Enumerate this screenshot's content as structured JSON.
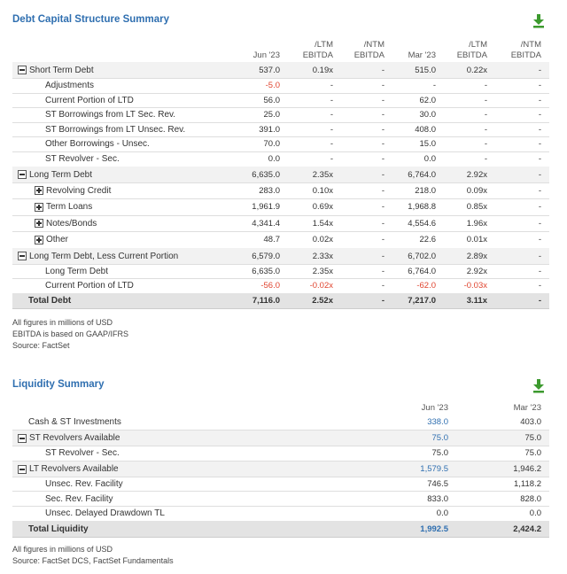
{
  "debt": {
    "title": "Debt Capital Structure Summary",
    "download_icon": "download-icon",
    "columns": [
      "Jun '23",
      "/LTM EBITDA",
      "/NTM EBITDA",
      "Mar '23",
      "/LTM EBITDA",
      "/NTM EBITDA"
    ],
    "col_hdr": {
      "c1": "Jun '23",
      "c2a": "/LTM",
      "c2b": "EBITDA",
      "c3a": "/NTM",
      "c3b": "EBITDA",
      "c4": "Mar '23",
      "c5a": "/LTM",
      "c5b": "EBITDA",
      "c6a": "/NTM",
      "c6b": "EBITDA"
    },
    "rows": [
      {
        "label": "Short Term Debt",
        "type": "minus",
        "values": [
          "537.0",
          "0.19x",
          "-",
          "515.0",
          "0.22x",
          "-"
        ]
      },
      {
        "label": "Adjustments",
        "type": "child",
        "values": [
          "-5.0",
          "-",
          "-",
          "-",
          "-",
          "-"
        ]
      },
      {
        "label": "Current Portion of LTD",
        "type": "child",
        "values": [
          "56.0",
          "-",
          "-",
          "62.0",
          "-",
          "-"
        ]
      },
      {
        "label": "ST Borrowings from LT Sec. Rev.",
        "type": "child",
        "values": [
          "25.0",
          "-",
          "-",
          "30.0",
          "-",
          "-"
        ]
      },
      {
        "label": "ST Borrowings from LT Unsec. Rev.",
        "type": "child",
        "values": [
          "391.0",
          "-",
          "-",
          "408.0",
          "-",
          "-"
        ]
      },
      {
        "label": "Other Borrowings - Unsec.",
        "type": "child",
        "values": [
          "70.0",
          "-",
          "-",
          "15.0",
          "-",
          "-"
        ]
      },
      {
        "label": "ST Revolver - Sec.",
        "type": "child",
        "values": [
          "0.0",
          "-",
          "-",
          "0.0",
          "-",
          "-"
        ]
      },
      {
        "label": "Long Term Debt",
        "type": "minus",
        "values": [
          "6,635.0",
          "2.35x",
          "-",
          "6,764.0",
          "2.92x",
          "-"
        ]
      },
      {
        "label": "Revolving Credit",
        "type": "plus",
        "values": [
          "283.0",
          "0.10x",
          "-",
          "218.0",
          "0.09x",
          "-"
        ]
      },
      {
        "label": "Term Loans",
        "type": "plus",
        "values": [
          "1,961.9",
          "0.69x",
          "-",
          "1,968.8",
          "0.85x",
          "-"
        ]
      },
      {
        "label": "Notes/Bonds",
        "type": "plus",
        "values": [
          "4,341.4",
          "1.54x",
          "-",
          "4,554.6",
          "1.96x",
          "-"
        ]
      },
      {
        "label": "Other",
        "type": "plus",
        "values": [
          "48.7",
          "0.02x",
          "-",
          "22.6",
          "0.01x",
          "-"
        ]
      },
      {
        "label": "Long Term Debt, Less Current Portion",
        "type": "minus",
        "values": [
          "6,579.0",
          "2.33x",
          "-",
          "6,702.0",
          "2.89x",
          "-"
        ]
      },
      {
        "label": "Long Term Debt",
        "type": "child",
        "values": [
          "6,635.0",
          "2.35x",
          "-",
          "6,764.0",
          "2.92x",
          "-"
        ]
      },
      {
        "label": "Current Portion of LTD",
        "type": "child",
        "values": [
          "-56.0",
          "-0.02x",
          "-",
          "-62.0",
          "-0.03x",
          "-"
        ]
      },
      {
        "label": "Total Debt",
        "type": "total",
        "values": [
          "7,116.0",
          "2.52x",
          "-",
          "7,217.0",
          "3.11x",
          "-"
        ]
      }
    ],
    "notes": [
      "All figures in millions of USD",
      "EBITDA is based on GAAP/IFRS",
      "Source: FactSet"
    ]
  },
  "liquidity": {
    "title": "Liquidity Summary",
    "download_icon": "download-icon",
    "col_hdr": {
      "c1": "Jun '23",
      "c2": "Mar '23"
    },
    "rows": [
      {
        "label": "Cash & ST Investments",
        "type": "plain",
        "values": [
          "338.0",
          "403.0"
        ]
      },
      {
        "label": "ST Revolvers Available",
        "type": "minus",
        "values": [
          "75.0",
          "75.0"
        ]
      },
      {
        "label": "ST Revolver - Sec.",
        "type": "child",
        "values": [
          "75.0",
          "75.0"
        ]
      },
      {
        "label": "LT Revolvers Available",
        "type": "minus",
        "values": [
          "1,579.5",
          "1,946.2"
        ]
      },
      {
        "label": "Unsec. Rev. Facility",
        "type": "child",
        "values": [
          "746.5",
          "1,118.2"
        ]
      },
      {
        "label": "Sec. Rev. Facility",
        "type": "child",
        "values": [
          "833.0",
          "828.0"
        ]
      },
      {
        "label": "Unsec. Delayed Drawdown TL",
        "type": "child",
        "values": [
          "0.0",
          "0.0"
        ]
      },
      {
        "label": "Total Liquidity",
        "type": "total",
        "values": [
          "1,992.5",
          "2,424.2"
        ]
      }
    ],
    "notes": [
      "All figures in millions of USD",
      "Source: FactSet DCS, FactSet Fundamentals"
    ]
  },
  "colors": {
    "accent": "#2f6fb0",
    "negative": "#e0442f",
    "download": "#3c9a2e"
  }
}
